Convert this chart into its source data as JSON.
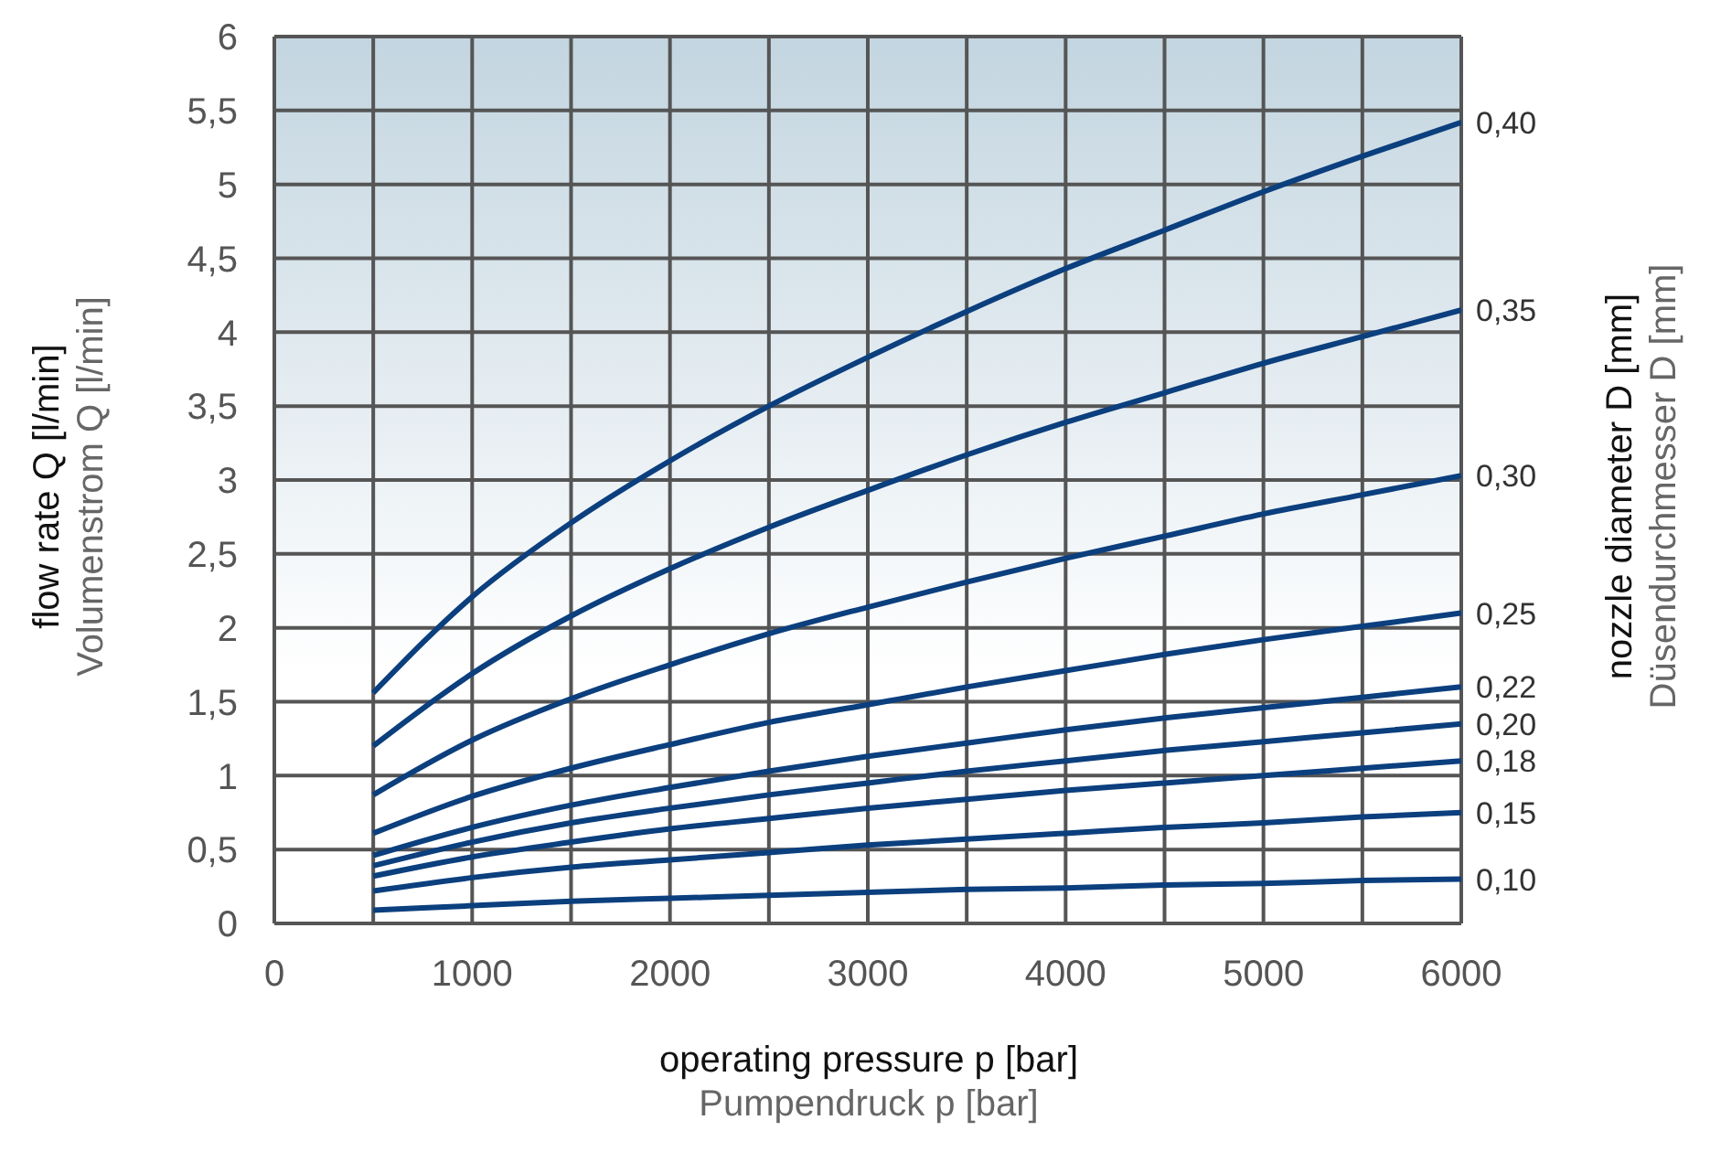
{
  "chart_data": {
    "type": "line",
    "xlabel": "operating pressure p [bar]\nPumpendruck p [bar]",
    "ylabel": "flow rate Q [l/min]\nVolumenstrom Q [l/min]",
    "y2label": "nozzle diameter D [mm]\nDüsendurchmesser  D  [mm]",
    "x": [
      500,
      1000,
      1500,
      2000,
      2500,
      3000,
      3500,
      4000,
      4500,
      5000,
      5500,
      6000
    ],
    "series": [
      {
        "name": "0,40",
        "color": "#0b3f7e",
        "values": [
          1.56,
          2.21,
          2.71,
          3.13,
          3.5,
          3.83,
          4.14,
          4.43,
          4.69,
          4.95,
          5.19,
          5.42
        ]
      },
      {
        "name": "0,35",
        "color": "#0b3f7e",
        "values": [
          1.2,
          1.69,
          2.08,
          2.4,
          2.68,
          2.93,
          3.17,
          3.39,
          3.59,
          3.79,
          3.97,
          4.15
        ]
      },
      {
        "name": "0,30",
        "color": "#0b3f7e",
        "values": [
          0.87,
          1.24,
          1.52,
          1.75,
          1.96,
          2.14,
          2.31,
          2.47,
          2.62,
          2.77,
          2.9,
          3.03
        ]
      },
      {
        "name": "0,25",
        "color": "#0b3f7e",
        "values": [
          0.61,
          0.86,
          1.05,
          1.21,
          1.36,
          1.48,
          1.6,
          1.71,
          1.82,
          1.92,
          2.01,
          2.1
        ]
      },
      {
        "name": "0,22",
        "color": "#0b3f7e",
        "values": [
          0.46,
          0.65,
          0.8,
          0.92,
          1.03,
          1.13,
          1.22,
          1.31,
          1.39,
          1.46,
          1.53,
          1.6
        ]
      },
      {
        "name": "0,20",
        "color": "#0b3f7e",
        "values": [
          0.39,
          0.55,
          0.68,
          0.78,
          0.87,
          0.95,
          1.03,
          1.1,
          1.17,
          1.23,
          1.29,
          1.35
        ]
      },
      {
        "name": "0,18",
        "color": "#0b3f7e",
        "values": [
          0.32,
          0.45,
          0.55,
          0.64,
          0.71,
          0.78,
          0.84,
          0.9,
          0.95,
          1.0,
          1.05,
          1.1
        ]
      },
      {
        "name": "0,15",
        "color": "#0b3f7e",
        "values": [
          0.22,
          0.31,
          0.38,
          0.43,
          0.48,
          0.53,
          0.57,
          0.61,
          0.65,
          0.68,
          0.72,
          0.75
        ]
      },
      {
        "name": "0,10",
        "color": "#0b3f7e",
        "values": [
          0.09,
          0.12,
          0.15,
          0.17,
          0.19,
          0.21,
          0.23,
          0.24,
          0.26,
          0.27,
          0.29,
          0.3
        ]
      }
    ],
    "xlim": [
      0,
      6000
    ],
    "xticks": [
      0,
      {
        "value": 500,
        "label": null
      },
      1000,
      {
        "value": 1500,
        "label": null
      },
      2000,
      {
        "value": 2500,
        "label": null
      },
      3000,
      {
        "value": 3500,
        "label": null
      },
      4000,
      {
        "value": 4500,
        "label": null
      },
      5000,
      {
        "value": 5500,
        "label": null
      },
      6000
    ],
    "ylim": [
      0,
      6
    ],
    "yticks": [
      0,
      {
        "value": 0.5,
        "label": "0,5"
      },
      1,
      {
        "value": 1.5,
        "label": "1,5"
      },
      2,
      {
        "value": 2.5,
        "label": "2,5"
      },
      3,
      {
        "value": 3.5,
        "label": "3,5"
      },
      4,
      {
        "value": 4.5,
        "label": "4,5"
      },
      5,
      {
        "value": 5.5,
        "label": "5,5"
      },
      6
    ],
    "grid": true,
    "marker": "none",
    "line_style": "solid"
  }
}
